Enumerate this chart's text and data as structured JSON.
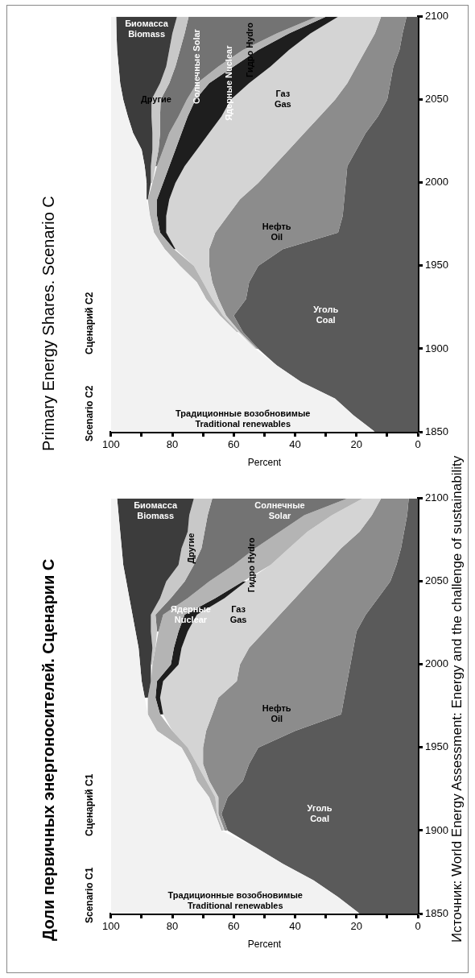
{
  "chart_data": [
    {
      "type": "area",
      "title": "Доли первичных энергоносителей. Сценарии C",
      "subtitle": "Scenario C1",
      "xlabel": "Percent",
      "annotations": [
        "Сценарий C1",
        "Источник: World Energy Assessment: Energy and the challenge of sustainability"
      ],
      "stacked": true,
      "orientation": "horizontal",
      "legend": false,
      "grid": false,
      "marker": "none",
      "x": [
        1850,
        1860,
        1870,
        1880,
        1890,
        1900,
        1910,
        1920,
        1930,
        1940,
        1950,
        1960,
        1970,
        1980,
        1990,
        2000,
        2010,
        2020,
        2030,
        2040,
        2050,
        2060,
        2070,
        2080,
        2090,
        2100
      ],
      "ylim": [
        1850,
        2100
      ],
      "yticks": [
        1850,
        1900,
        1950,
        2000,
        2050,
        2100
      ],
      "xlim": [
        100,
        0
      ],
      "xticks": [
        100,
        {
          "value": 90,
          "label": null
        },
        80,
        {
          "value": 70,
          "label": null
        },
        60,
        {
          "value": 50,
          "label": null
        },
        40,
        {
          "value": 30,
          "label": null
        },
        20,
        {
          "value": 10,
          "label": null
        },
        0
      ],
      "series": [
        {
          "name": "Уголь\nCoal",
          "color": "#5a5a5a",
          "values": [
            19,
            26,
            34,
            44,
            53,
            62,
            64,
            62,
            57,
            55,
            52,
            40,
            25,
            24,
            23,
            22,
            21,
            20,
            17,
            13,
            9,
            7,
            5.5,
            4.5,
            3.5,
            3
          ]
        },
        {
          "name": "Нефть\nOil",
          "color": "#8c8c8c",
          "values": [
            null,
            null,
            null,
            null,
            null,
            1,
            1,
            3,
            11,
            15,
            18,
            29,
            42,
            41,
            36,
            36,
            34,
            30,
            28,
            27,
            26,
            23,
            19.5,
            14.5,
            11.5,
            9
          ]
        },
        {
          "name": "Газ\nGas",
          "color": "#d4d4d4",
          "values": [
            null,
            null,
            null,
            null,
            null,
            0.5,
            0.5,
            1,
            1,
            2,
            5,
            11,
            16,
            19,
            24,
            20,
            22,
            25,
            27,
            23,
            21,
            18,
            17,
            17,
            13,
            6
          ]
        },
        {
          "name": "Ядерные\nNuclear",
          "color": "#1e1e1e",
          "values": [
            null,
            null,
            null,
            null,
            null,
            null,
            null,
            null,
            null,
            null,
            null,
            null,
            1,
            1.5,
            2,
            2.5,
            2.5,
            3,
            4,
            3,
            1,
            null,
            null,
            null,
            null,
            null
          ]
        },
        {
          "name": "Гидро Hydro",
          "color": "#b4b4b4",
          "values": [
            null,
            null,
            null,
            null,
            null,
            0.5,
            0.5,
            2,
            3,
            2,
            2,
            5,
            4,
            2.5,
            2,
            6,
            6,
            6.5,
            7,
            9,
            11,
            12,
            11,
            9,
            9,
            5
          ]
        },
        {
          "name": "Солнечные\nSolar",
          "color": "#737373",
          "values": [
            null,
            null,
            null,
            null,
            null,
            null,
            null,
            null,
            null,
            null,
            null,
            null,
            null,
            null,
            null,
            null,
            null,
            0.5,
            2.5,
            5.5,
            8,
            13,
            17.5,
            24.5,
            31.5,
            44
          ]
        },
        {
          "name": "Другие",
          "color": "#c8c8c8",
          "values": [
            null,
            null,
            null,
            null,
            null,
            null,
            null,
            null,
            null,
            null,
            null,
            null,
            null,
            null,
            null,
            0.5,
            1,
            2,
            1.5,
            3.5,
            6,
            5,
            6.5,
            5.5,
            6,
            6
          ]
        },
        {
          "name": "Биомасса\nBiomass",
          "color": "#3c3c3c",
          "values": [
            null,
            null,
            null,
            null,
            null,
            null,
            null,
            null,
            null,
            null,
            null,
            null,
            null,
            1,
            3,
            3.5,
            4.5,
            5,
            6,
            10,
            13,
            18,
            19.5,
            22,
            23,
            25
          ]
        },
        {
          "name": "Традиционные возобновимые\nTraditional renewables",
          "color": "#f2f2f2",
          "values": [
            81,
            74,
            66,
            56,
            47,
            36,
            34,
            32,
            28,
            26,
            23,
            15,
            12,
            11,
            10,
            9.5,
            9,
            8,
            7,
            6,
            5,
            4,
            3.5,
            3,
            2.5,
            2
          ]
        }
      ]
    },
    {
      "type": "area",
      "title": "Primary Energy Shares. Scenario C",
      "subtitle": "Scenario C2",
      "xlabel": "Percent",
      "annotations": [
        "Сценарий C2"
      ],
      "stacked": true,
      "orientation": "horizontal",
      "legend": false,
      "grid": false,
      "marker": "none",
      "x": [
        1850,
        1860,
        1870,
        1880,
        1890,
        1900,
        1910,
        1920,
        1930,
        1940,
        1950,
        1960,
        1970,
        1980,
        1990,
        2000,
        2010,
        2020,
        2030,
        2040,
        2050,
        2060,
        2070,
        2080,
        2090,
        2100
      ],
      "ylim": [
        1850,
        2100
      ],
      "yticks": [
        1850,
        1900,
        1950,
        2000,
        2050,
        2100
      ],
      "xlim": [
        100,
        0
      ],
      "xticks": [
        100,
        {
          "value": 90,
          "label": null
        },
        80,
        {
          "value": 70,
          "label": null
        },
        60,
        {
          "value": 50,
          "label": null
        },
        40,
        {
          "value": 30,
          "label": null
        },
        20,
        {
          "value": 10,
          "label": null
        },
        0
      ],
      "series": [
        {
          "name": "Уголь\nCoal",
          "color": "#5a5a5a",
          "values": [
            14,
            21,
            27,
            38,
            46,
            52,
            57,
            60,
            56,
            55,
            52,
            44,
            26,
            24.5,
            24,
            23.5,
            23,
            20,
            17,
            13,
            10,
            9,
            8,
            6,
            5,
            3.7
          ]
        },
        {
          "name": "Нефть\nOil",
          "color": "#8c8c8c",
          "values": [
            null,
            null,
            null,
            null,
            null,
            0.5,
            1,
            2.5,
            9,
            12,
            16,
            24,
            40,
            37.5,
            34,
            28.5,
            24,
            22,
            20,
            19,
            17,
            14,
            12,
            11,
            9,
            8.3
          ]
        },
        {
          "name": "Газ\nGas",
          "color": "#d4d4d4",
          "values": [
            null,
            null,
            null,
            null,
            null,
            0.5,
            0.5,
            1,
            2,
            3,
            5,
            11,
            16,
            20,
            23,
            27,
            29,
            30,
            31,
            32,
            34,
            32,
            28,
            25,
            21,
            14
          ]
        },
        {
          "name": "Ядерные\nNuclear",
          "color": "#1e1e1e",
          "values": [
            null,
            null,
            null,
            null,
            null,
            null,
            null,
            null,
            null,
            null,
            null,
            0.5,
            2,
            3,
            4,
            4,
            5,
            7,
            9,
            11,
            11.5,
            13,
            12,
            10,
            7,
            4
          ]
        },
        {
          "name": "Гидро Hydro",
          "color": "#b4b4b4",
          "values": [
            null,
            null,
            null,
            null,
            null,
            null,
            0.5,
            1,
            2,
            2,
            4.5,
            3,
            2,
            2.3,
            3,
            3.5,
            4,
            4,
            4,
            3,
            2.8,
            4,
            5,
            5,
            4,
            3
          ]
        },
        {
          "name": "Солнечные\nSolar",
          "color": "#737373",
          "values": [
            null,
            null,
            null,
            null,
            null,
            null,
            null,
            null,
            null,
            null,
            null,
            null,
            null,
            null,
            null,
            null,
            0.5,
            1.5,
            3,
            6,
            8.5,
            9,
            14,
            20.5,
            30,
            41.7
          ]
        },
        {
          "name": "Другие",
          "color": "#c8c8c8",
          "values": [
            null,
            null,
            null,
            null,
            null,
            null,
            null,
            null,
            null,
            null,
            null,
            null,
            null,
            null,
            null,
            0.5,
            1.5,
            2,
            2.5,
            2.8,
            3,
            3,
            3,
            3.5,
            4,
            3.8
          ]
        },
        {
          "name": "Биомасса\nBiomass",
          "color": "#3c3c3c",
          "values": [
            null,
            null,
            null,
            null,
            null,
            null,
            null,
            null,
            null,
            null,
            null,
            null,
            null,
            null,
            0.4,
            1.4,
            2,
            3.5,
            6.3,
            7.7,
            9.2,
            13,
            15.5,
            17,
            18.2,
            19.8
          ]
        },
        {
          "name": "Традиционные возобновимые\nTraditional renewables",
          "color": "#f2f2f2",
          "values": [
            86,
            79,
            73,
            62,
            54,
            47,
            41,
            35.5,
            31,
            28,
            22.5,
            17.5,
            14,
            12.7,
            11.6,
            11.6,
            11,
            10,
            7.2,
            5.5,
            4,
            3,
            2.5,
            2,
            1.8,
            1.7
          ]
        }
      ]
    }
  ]
}
